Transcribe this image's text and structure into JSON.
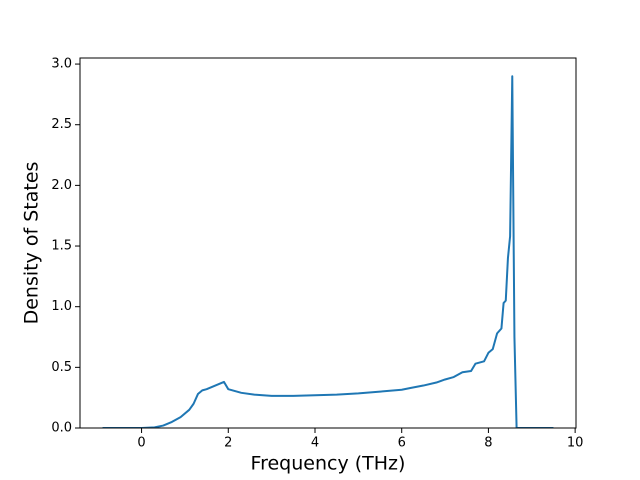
{
  "chart_data": {
    "type": "line",
    "x_label": "Frequency (THz)",
    "y_label": "Density of States",
    "x": [
      -0.9,
      0,
      0.3,
      0.5,
      0.7,
      0.9,
      1.1,
      1.2,
      1.3,
      1.4,
      1.5,
      1.7,
      1.9,
      2.0,
      2.3,
      2.6,
      3,
      3.5,
      4,
      4.5,
      5,
      5.5,
      6,
      6.2,
      6.5,
      6.8,
      7,
      7.2,
      7.4,
      7.6,
      7.7,
      7.9,
      8.0,
      8.1,
      8.2,
      8.3,
      8.35,
      8.4,
      8.45,
      8.5,
      8.55,
      8.6,
      8.65,
      9.5
    ],
    "values": [
      0,
      0,
      0.005,
      0.02,
      0.05,
      0.09,
      0.15,
      0.2,
      0.28,
      0.31,
      0.32,
      0.35,
      0.38,
      0.32,
      0.29,
      0.275,
      0.265,
      0.265,
      0.27,
      0.275,
      0.285,
      0.3,
      0.315,
      0.33,
      0.35,
      0.375,
      0.4,
      0.42,
      0.46,
      0.47,
      0.53,
      0.55,
      0.62,
      0.65,
      0.78,
      0.82,
      1.03,
      1.05,
      1.4,
      1.58,
      2.9,
      0.75,
      0,
      0
    ],
    "color": "#1f77b4",
    "xlim": [
      -1.42,
      10.02
    ],
    "xticks": [
      0,
      2,
      4,
      6,
      8,
      10
    ],
    "ylim": [
      0,
      3.05
    ],
    "yticks": [
      {
        "value": 0,
        "label": "0.0"
      },
      0.5,
      {
        "value": 1,
        "label": "1.0"
      },
      1.5,
      {
        "value": 2,
        "label": "2.0"
      },
      2.5,
      {
        "value": 3,
        "label": "3.0"
      }
    ]
  }
}
